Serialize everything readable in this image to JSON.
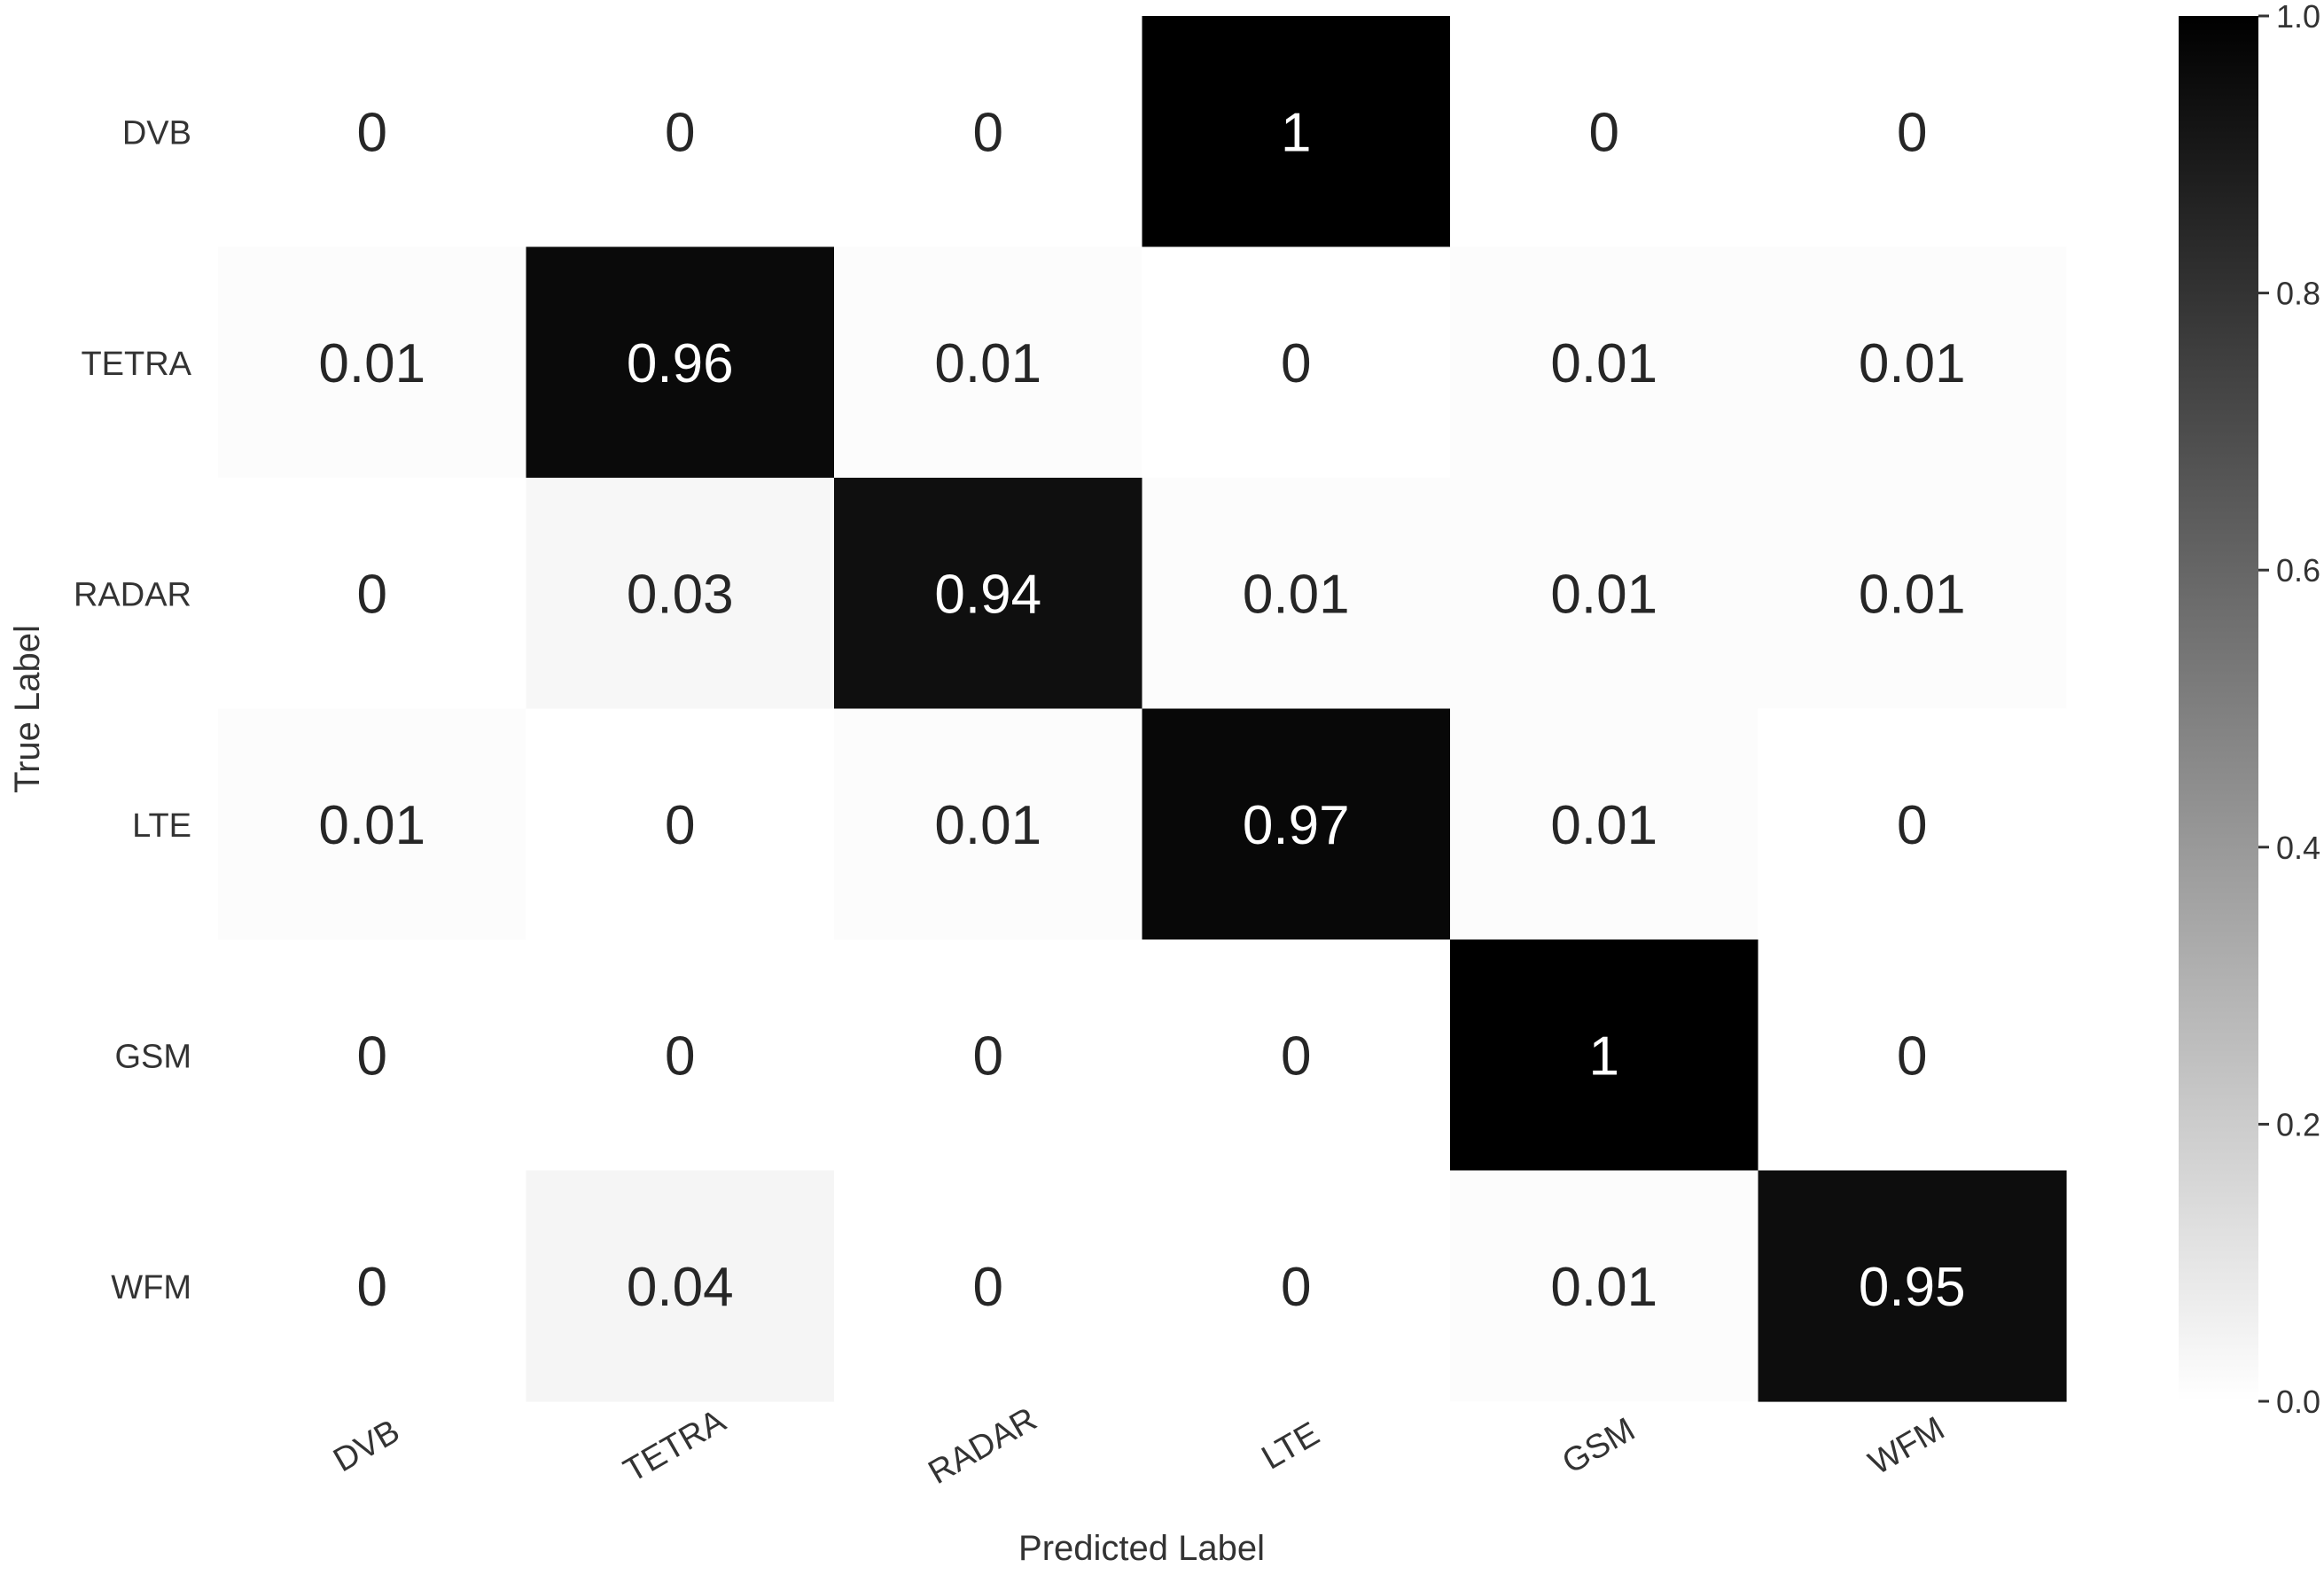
{
  "chart_data": {
    "type": "heatmap",
    "title": "",
    "xlabel": "Predicted Label",
    "ylabel": "True Label",
    "x_categories": [
      "DVB",
      "TETRA",
      "RADAR",
      "LTE",
      "GSM",
      "WFM"
    ],
    "y_categories": [
      "DVB",
      "TETRA",
      "RADAR",
      "LTE",
      "GSM",
      "WFM"
    ],
    "matrix": [
      [
        0,
        0,
        0,
        1,
        0,
        0
      ],
      [
        0.01,
        0.96,
        0.01,
        0,
        0.01,
        0.01
      ],
      [
        0,
        0.03,
        0.94,
        0.01,
        0.01,
        0.01
      ],
      [
        0.01,
        0,
        0.01,
        0.97,
        0.01,
        0
      ],
      [
        0,
        0,
        0,
        0,
        1,
        0
      ],
      [
        0,
        0.04,
        0,
        0,
        0.01,
        0.95
      ]
    ],
    "matrix_labels": [
      [
        "0",
        "0",
        "0",
        "1",
        "0",
        "0"
      ],
      [
        "0.01",
        "0.96",
        "0.01",
        "0",
        "0.01",
        "0.01"
      ],
      [
        "0",
        "0.03",
        "0.94",
        "0.01",
        "0.01",
        "0.01"
      ],
      [
        "0.01",
        "0",
        "0.01",
        "0.97",
        "0.01",
        "0"
      ],
      [
        "0",
        "0",
        "0",
        "0",
        "1",
        "0"
      ],
      [
        "0",
        "0.04",
        "0",
        "0",
        "0.01",
        "0.95"
      ]
    ],
    "colormap": "Greys",
    "color_low": "#ffffff",
    "color_high": "#000000",
    "colorbar": {
      "range": [
        0,
        1
      ],
      "ticks": [
        0.0,
        0.2,
        0.4,
        0.6,
        0.8,
        1.0
      ],
      "tick_labels": [
        "0.0",
        "0.2",
        "0.4",
        "0.6",
        "0.8",
        "1.0"
      ]
    }
  }
}
